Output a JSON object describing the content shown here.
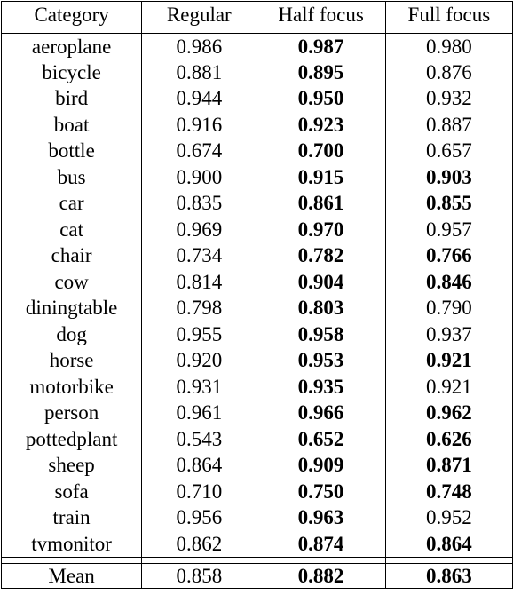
{
  "columns": [
    "Category",
    "Regular",
    "Half focus",
    "Full focus"
  ],
  "rows": [
    {
      "category": "aeroplane",
      "regular": "0.986",
      "half": "0.987",
      "full": "0.980",
      "half_bold": true,
      "full_bold": false
    },
    {
      "category": "bicycle",
      "regular": "0.881",
      "half": "0.895",
      "full": "0.876",
      "half_bold": true,
      "full_bold": false
    },
    {
      "category": "bird",
      "regular": "0.944",
      "half": "0.950",
      "full": "0.932",
      "half_bold": true,
      "full_bold": false
    },
    {
      "category": "boat",
      "regular": "0.916",
      "half": "0.923",
      "full": "0.887",
      "half_bold": true,
      "full_bold": false
    },
    {
      "category": "bottle",
      "regular": "0.674",
      "half": "0.700",
      "full": "0.657",
      "half_bold": true,
      "full_bold": false
    },
    {
      "category": "bus",
      "regular": "0.900",
      "half": "0.915",
      "full": "0.903",
      "half_bold": true,
      "full_bold": true
    },
    {
      "category": "car",
      "regular": "0.835",
      "half": "0.861",
      "full": "0.855",
      "half_bold": true,
      "full_bold": true
    },
    {
      "category": "cat",
      "regular": "0.969",
      "half": "0.970",
      "full": "0.957",
      "half_bold": true,
      "full_bold": false
    },
    {
      "category": "chair",
      "regular": "0.734",
      "half": "0.782",
      "full": "0.766",
      "half_bold": true,
      "full_bold": true
    },
    {
      "category": "cow",
      "regular": "0.814",
      "half": "0.904",
      "full": "0.846",
      "half_bold": true,
      "full_bold": true
    },
    {
      "category": "diningtable",
      "regular": "0.798",
      "half": "0.803",
      "full": "0.790",
      "half_bold": true,
      "full_bold": false
    },
    {
      "category": "dog",
      "regular": "0.955",
      "half": "0.958",
      "full": "0.937",
      "half_bold": true,
      "full_bold": false
    },
    {
      "category": "horse",
      "regular": "0.920",
      "half": "0.953",
      "full": "0.921",
      "half_bold": true,
      "full_bold": true
    },
    {
      "category": "motorbike",
      "regular": "0.931",
      "half": "0.935",
      "full": "0.921",
      "half_bold": true,
      "full_bold": false
    },
    {
      "category": "person",
      "regular": "0.961",
      "half": "0.966",
      "full": "0.962",
      "half_bold": true,
      "full_bold": true
    },
    {
      "category": "pottedplant",
      "regular": "0.543",
      "half": "0.652",
      "full": "0.626",
      "half_bold": true,
      "full_bold": true
    },
    {
      "category": "sheep",
      "regular": "0.864",
      "half": "0.909",
      "full": "0.871",
      "half_bold": true,
      "full_bold": true
    },
    {
      "category": "sofa",
      "regular": "0.710",
      "half": "0.750",
      "full": "0.748",
      "half_bold": true,
      "full_bold": true
    },
    {
      "category": "train",
      "regular": "0.956",
      "half": "0.963",
      "full": "0.952",
      "half_bold": true,
      "full_bold": false
    },
    {
      "category": "tvmonitor",
      "regular": "0.862",
      "half": "0.874",
      "full": "0.864",
      "half_bold": true,
      "full_bold": true
    }
  ],
  "mean": {
    "category": "Mean",
    "regular": "0.858",
    "half": "0.882",
    "full": "0.863",
    "half_bold": true,
    "full_bold": true
  }
}
